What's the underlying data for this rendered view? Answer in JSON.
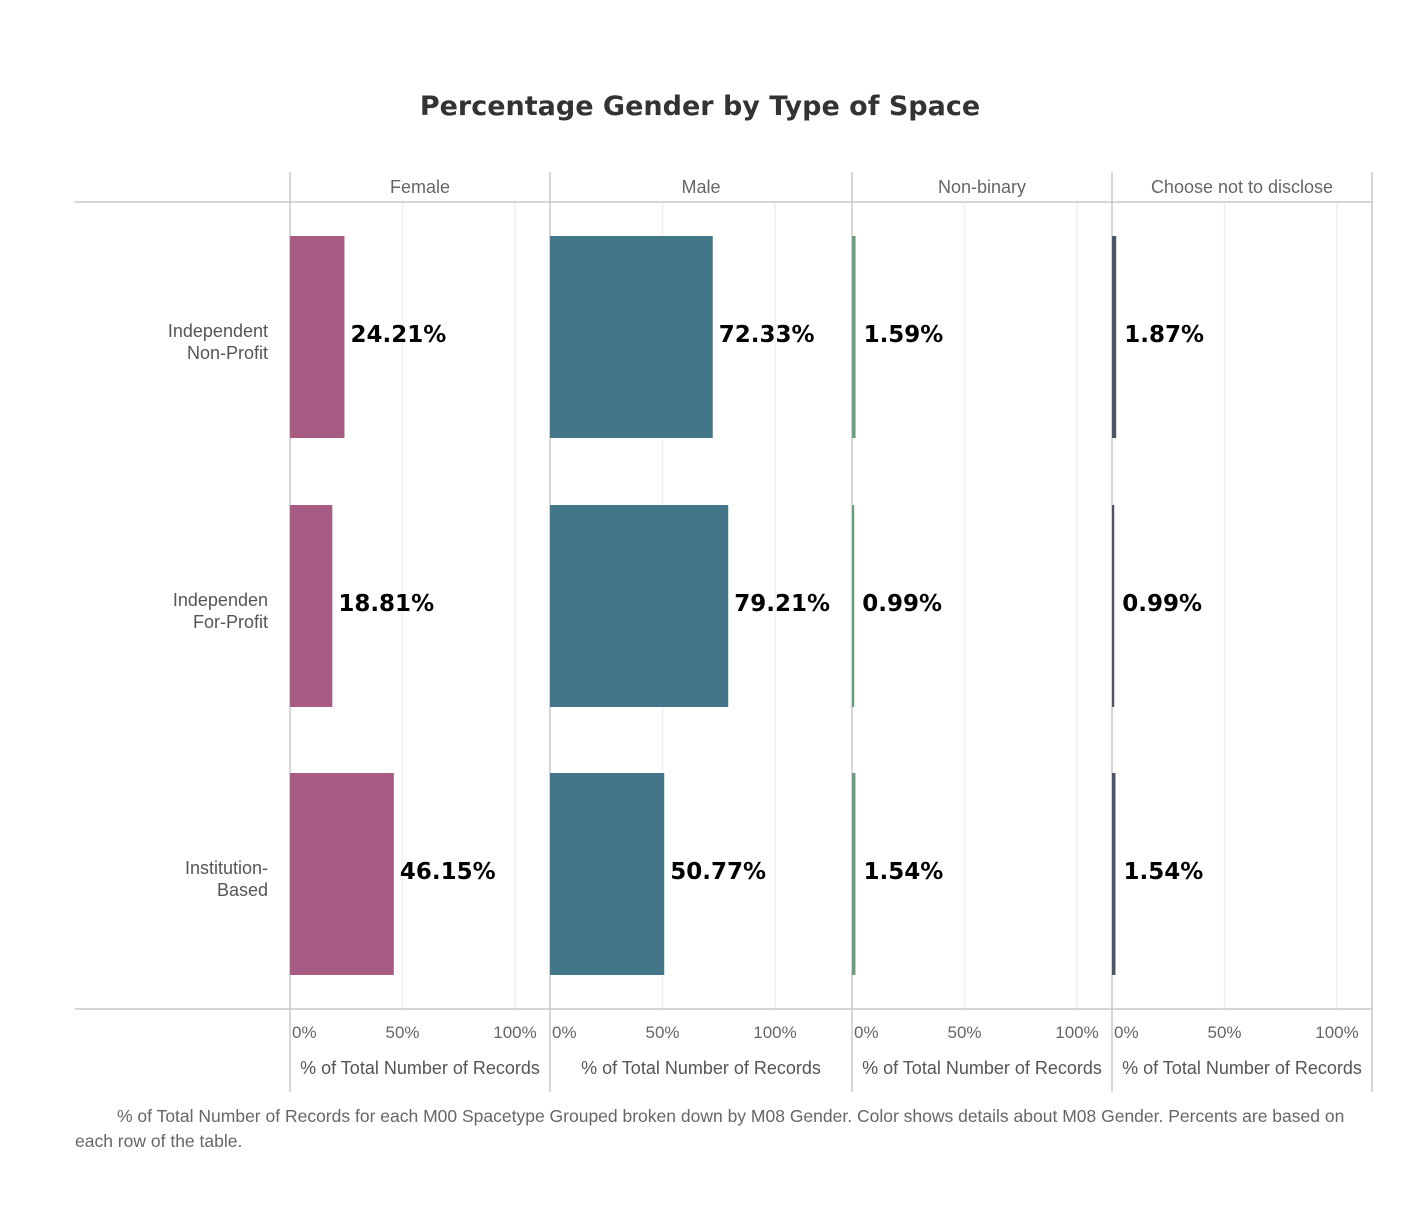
{
  "chart_data": {
    "type": "bar",
    "orientation": "horizontal",
    "title": "Percentage Gender by Type of Space",
    "categories": [
      "Independent Non-Profit",
      "Independen For-Profit",
      "Institution-Based"
    ],
    "category_lines": [
      [
        "Independent",
        "Non-Profit"
      ],
      [
        "Independen",
        "For-Profit"
      ],
      [
        "Institution-",
        "Based"
      ]
    ],
    "series": [
      {
        "name": "Female",
        "color": "#a85c84",
        "values": [
          24.21,
          18.81,
          46.15
        ],
        "labels": [
          "24.21%",
          "18.81%",
          "46.15%"
        ]
      },
      {
        "name": "Male",
        "color": "#437689",
        "values": [
          72.33,
          79.21,
          50.77
        ],
        "labels": [
          "72.33%",
          "79.21%",
          "50.77%"
        ]
      },
      {
        "name": "Non-binary",
        "color": "#6a9e7e",
        "values": [
          1.59,
          0.99,
          1.54
        ],
        "labels": [
          "1.59%",
          "0.99%",
          "1.54%"
        ]
      },
      {
        "name": "Choose not to disclose",
        "color": "#4a5668",
        "values": [
          1.87,
          0.99,
          1.54
        ],
        "labels": [
          "1.87%",
          "0.99%",
          "1.54%"
        ]
      }
    ],
    "xlim": [
      0,
      100
    ],
    "x_ticks": [
      0,
      50,
      100
    ],
    "x_tick_labels": [
      "0%",
      "50%",
      "100%"
    ],
    "xlabel": "% of Total Number of Records",
    "grid": true,
    "footnote": "% of Total Number of Records for each M00 Spacetype Grouped broken down by M08 Gender.  Color shows details about M08 Gender. Percents are based on each row of the table."
  }
}
